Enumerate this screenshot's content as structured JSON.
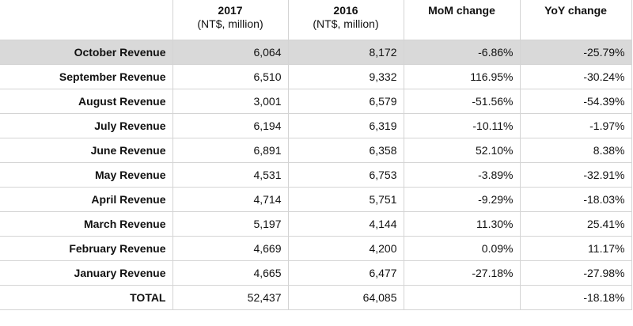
{
  "header": {
    "col_2017_year": "2017",
    "col_2017_unit": "(NT$, million)",
    "col_2016_year": "2016",
    "col_2016_unit": "(NT$, million)",
    "col_mom": "MoM change",
    "col_yoy": "YoY change"
  },
  "rows": [
    {
      "label": "October Revenue",
      "v2017": "6,064",
      "v2016": "8,172",
      "mom": "-6.86%",
      "yoy": "-25.79%"
    },
    {
      "label": "September Revenue",
      "v2017": "6,510",
      "v2016": "9,332",
      "mom": "116.95%",
      "yoy": "-30.24%"
    },
    {
      "label": "August Revenue",
      "v2017": "3,001",
      "v2016": "6,579",
      "mom": "-51.56%",
      "yoy": "-54.39%"
    },
    {
      "label": "July Revenue",
      "v2017": "6,194",
      "v2016": "6,319",
      "mom": "-10.11%",
      "yoy": "-1.97%"
    },
    {
      "label": "June Revenue",
      "v2017": "6,891",
      "v2016": "6,358",
      "mom": "52.10%",
      "yoy": "8.38%"
    },
    {
      "label": "May Revenue",
      "v2017": "4,531",
      "v2016": "6,753",
      "mom": "-3.89%",
      "yoy": "-32.91%"
    },
    {
      "label": "April Revenue",
      "v2017": "4,714",
      "v2016": "5,751",
      "mom": "-9.29%",
      "yoy": "-18.03%"
    },
    {
      "label": "March Revenue",
      "v2017": "5,197",
      "v2016": "4,144",
      "mom": "11.30%",
      "yoy": "25.41%"
    },
    {
      "label": "February Revenue",
      "v2017": "4,669",
      "v2016": "4,200",
      "mom": "0.09%",
      "yoy": "11.17%"
    },
    {
      "label": "January Revenue",
      "v2017": "4,665",
      "v2016": "6,477",
      "mom": "-27.18%",
      "yoy": "-27.98%"
    },
    {
      "label": "TOTAL",
      "v2017": "52,437",
      "v2016": "64,085",
      "mom": "",
      "yoy": "-18.18%"
    }
  ]
}
